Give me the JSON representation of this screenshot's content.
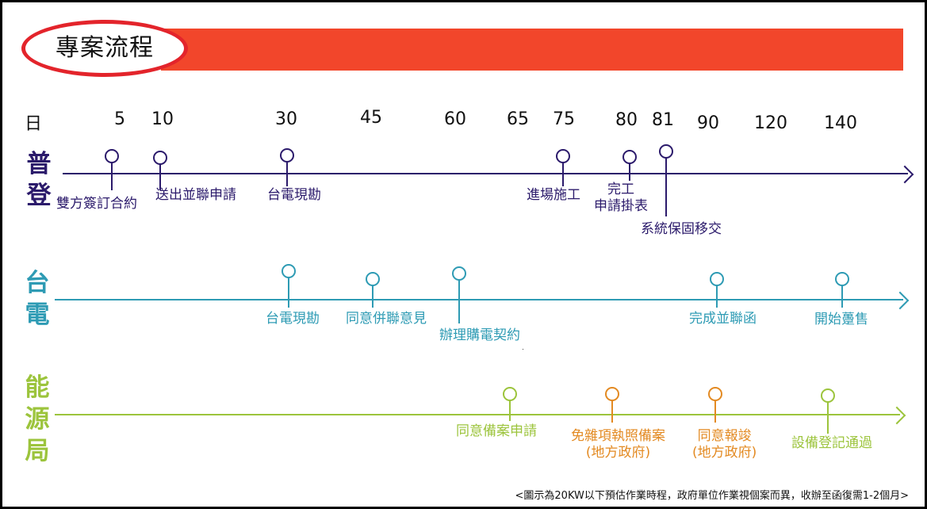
{
  "title": "專案流程",
  "day_axis": {
    "label": "日",
    "ticks": [
      "5",
      "10",
      "30",
      "45",
      "60",
      "65",
      "75",
      "80",
      "81",
      "90",
      "120",
      "140"
    ]
  },
  "rows": {
    "pudeng": {
      "label_chars": [
        "普",
        "登"
      ],
      "color": "#2b1a6b",
      "milestones": [
        "雙方簽訂合約",
        "送出並聯申請",
        "台電現勘",
        "進場施工",
        "完工\n申請掛表",
        "系統保固移交"
      ]
    },
    "taipower": {
      "label_chars": [
        "台",
        "電"
      ],
      "color": "#2e9bb4",
      "milestones": [
        "台電現勘",
        "同意併聯意見",
        "辦理購電契約",
        "完成並聯函",
        "開始躉售"
      ]
    },
    "energy": {
      "label_chars": [
        "能",
        "源",
        "局"
      ],
      "color": "#9cc43c",
      "accent_color": "#e38a22",
      "milestones": [
        "同意備案申請",
        "免雜項執照備案\n(地方政府)",
        "同意報竣\n(地方政府)",
        "設備登記通過"
      ]
    }
  },
  "footnote": "<圖示為20KW以下預估作業時程，政府單位作業視個案而異，收辦至函復需1-2個月>"
}
